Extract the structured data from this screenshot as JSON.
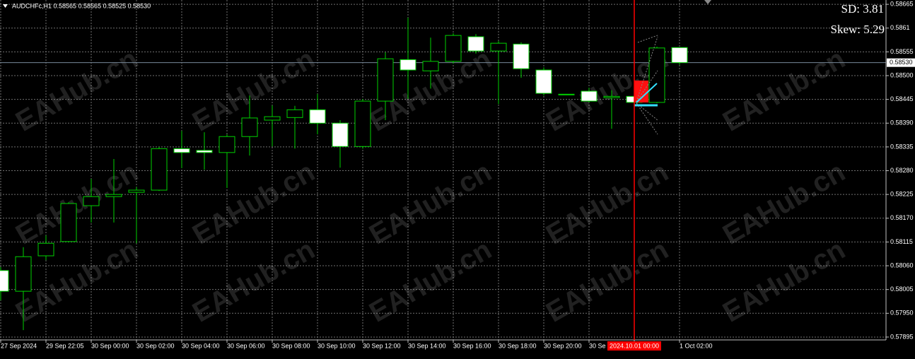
{
  "chart_data": {
    "type": "candlestick",
    "title": "AUDCHFc,H1 0.58565 0.58565 0.58525 0.58530",
    "annotations": [
      "SD: 3.81",
      "Skew: 5.29"
    ],
    "annotation_colors": [
      "#8a8a8a",
      "#3a8ee6"
    ],
    "watermark": "EAHub.cn",
    "categories": [
      "27 Sep 2024",
      null,
      "29 Sep 22:05",
      null,
      "30 Sep 00:00",
      null,
      "30 Sep 02:00",
      null,
      "30 Sep 04:00",
      null,
      "30 Sep 06:00",
      null,
      "30 Sep 08:00",
      null,
      "30 Sep 10:00",
      null,
      "30 Sep 12:00",
      null,
      "30 Sep 14:00",
      null,
      "30 Sep 16:00",
      null,
      "30 Sep 18:00",
      null,
      "30 Sep 20:00",
      null,
      "30 Se",
      null,
      "2024.10.01 00:00",
      null,
      "1 Oct 02:00"
    ],
    "highlight_category": "2024.10.01 00:00",
    "highlight_color": "#ff0000",
    "open": [
      0.58049,
      0.58001,
      0.58083,
      0.58116,
      0.58199,
      0.5822,
      0.5823,
      0.58235,
      0.58331,
      0.58327,
      0.58322,
      0.58359,
      0.58397,
      0.58403,
      0.58421,
      0.5839,
      0.58336,
      0.58441,
      0.58537,
      0.58511,
      0.58533,
      0.5859,
      0.58557,
      0.58573,
      0.58513,
      0.58456,
      0.58464,
      0.58449,
      0.58452,
      0.58438,
      0.58565
    ],
    "high": [
      0.58057,
      0.58103,
      0.5813,
      0.58207,
      0.58261,
      0.58307,
      0.58242,
      0.58335,
      0.58372,
      0.58369,
      0.58364,
      0.58454,
      0.58431,
      0.5843,
      0.58457,
      0.58397,
      0.58446,
      0.58554,
      0.58634,
      0.58588,
      0.58598,
      0.58596,
      0.5858,
      0.58577,
      0.58519,
      0.58457,
      0.58472,
      0.58466,
      0.58505,
      0.58567,
      0.58565
    ],
    "low": [
      0.5798,
      0.57911,
      0.58073,
      0.58114,
      0.5816,
      0.5816,
      0.58112,
      0.58233,
      0.58286,
      0.58282,
      0.5824,
      0.58315,
      0.58336,
      0.58331,
      0.58364,
      0.58287,
      0.58331,
      0.58397,
      0.58446,
      0.5847,
      0.58528,
      0.58551,
      0.58434,
      0.58495,
      0.58454,
      0.58456,
      0.58438,
      0.58377,
      0.58436,
      0.58436,
      0.58525
    ],
    "close": [
      0.58001,
      0.58081,
      0.58112,
      0.58204,
      0.5822,
      0.58225,
      0.58235,
      0.58331,
      0.58322,
      0.58322,
      0.58359,
      0.58402,
      0.58405,
      0.58421,
      0.5839,
      0.58336,
      0.58441,
      0.58539,
      0.58513,
      0.58533,
      0.58593,
      0.58557,
      0.58575,
      0.58516,
      0.58459,
      0.58457,
      0.58441,
      0.58452,
      0.58438,
      0.58564,
      0.5853
    ],
    "up_color": "#000000",
    "down_color": "#ffffff",
    "wick_color": "#00d000",
    "ylim": [
      0.5789,
      0.58675
    ],
    "yticks": [
      0.58665,
      0.5861,
      0.58555,
      {
        "value": 0.585,
        "label": "0.58500"
      },
      0.58445,
      {
        "value": 0.5839,
        "label": "0.58390"
      },
      0.58335,
      {
        "value": 0.5828,
        "label": "0.58280"
      },
      0.58225,
      {
        "value": 0.5817,
        "label": "0.58170"
      },
      0.58115,
      {
        "value": 0.5806,
        "label": "0.58060"
      },
      0.58005,
      {
        "value": 0.5795,
        "label": "0.57950"
      },
      0.57895
    ],
    "current_price": {
      "value": 0.5853,
      "label": "0.58530"
    },
    "grid": true
  }
}
